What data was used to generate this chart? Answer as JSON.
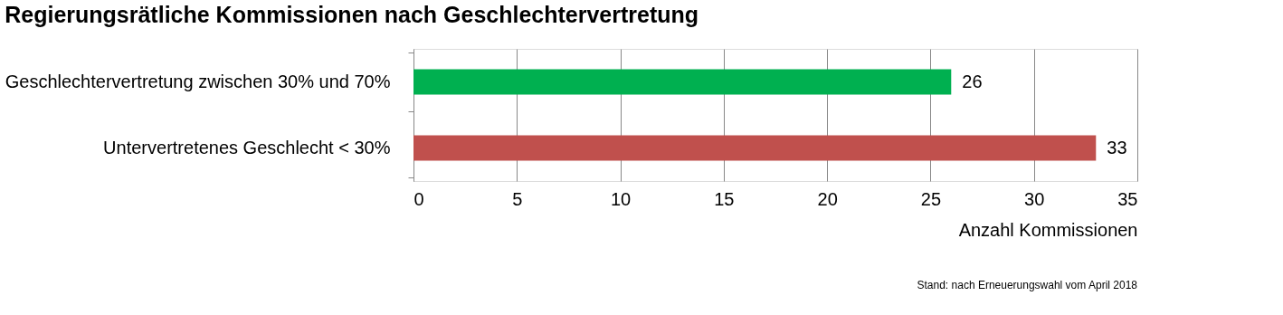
{
  "chart_data": {
    "type": "bar",
    "orientation": "horizontal",
    "title": "Regierungsrätliche Kommissionen nach Geschlechtervertretung",
    "categories": [
      "Geschlechtervertretung zwischen 30% und 70%",
      "Untervertretenes Geschlecht < 30%"
    ],
    "values": [
      26,
      33
    ],
    "colors": [
      "#00b050",
      "#c0504d"
    ],
    "xlim": [
      0,
      35
    ],
    "xticks": [
      0,
      5,
      10,
      15,
      20,
      25,
      30,
      35
    ],
    "xlabel": "Anzahl Kommissionen",
    "grid": "x",
    "legend": false,
    "data_labels": true,
    "annotations": [
      "Stand: nach Erneuerungswahl vom April 2018"
    ]
  }
}
